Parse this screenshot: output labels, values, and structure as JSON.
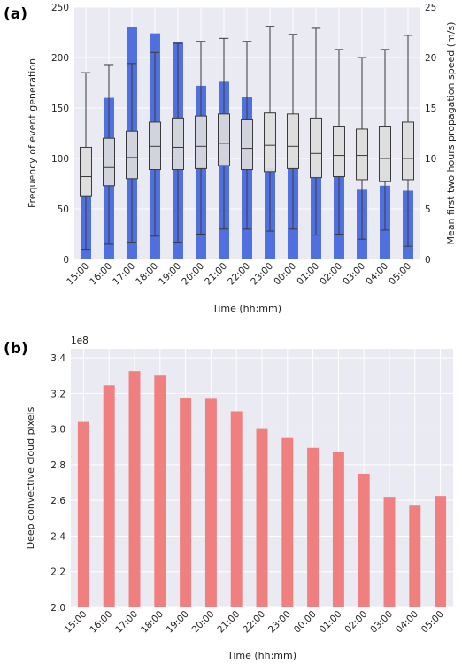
{
  "chart_data": [
    {
      "panel": "(a)",
      "type": "bar+box",
      "categories": [
        "15:00",
        "16:00",
        "17:00",
        "18:00",
        "19:00",
        "20:00",
        "21:00",
        "22:00",
        "23:00",
        "00:00",
        "01:00",
        "02:00",
        "03:00",
        "04:00",
        "05:00"
      ],
      "xlabel": "Time (hh:mm)",
      "ylabel": "Frequency of event generation",
      "ylim": [
        0,
        250
      ],
      "yticks": [
        0,
        50,
        100,
        150,
        200,
        250
      ],
      "bars": {
        "color": "#5070e0",
        "values": [
          63,
          160,
          230,
          224,
          215,
          172,
          176,
          161,
          90,
          90,
          82,
          83,
          69,
          73,
          68
        ]
      },
      "y2label": "Mean first two hours propagation speed (m/s)",
      "y2lim": [
        0,
        25
      ],
      "y2ticks": [
        0,
        5,
        10,
        15,
        20,
        25
      ],
      "boxes": [
        {
          "whislo": 1.0,
          "q1": 6.3,
          "med": 8.2,
          "q3": 11.1,
          "whishi": 18.5
        },
        {
          "whislo": 1.5,
          "q1": 7.3,
          "med": 9.1,
          "q3": 12.0,
          "whishi": 19.3
        },
        {
          "whislo": 1.7,
          "q1": 8.0,
          "med": 10.1,
          "q3": 12.7,
          "whishi": 19.4
        },
        {
          "whislo": 2.3,
          "q1": 8.9,
          "med": 11.2,
          "q3": 13.6,
          "whishi": 20.5
        },
        {
          "whislo": 1.7,
          "q1": 8.9,
          "med": 11.1,
          "q3": 14.0,
          "whishi": 21.4
        },
        {
          "whislo": 2.5,
          "q1": 9.0,
          "med": 11.2,
          "q3": 14.2,
          "whishi": 21.6
        },
        {
          "whislo": 3.0,
          "q1": 9.3,
          "med": 11.5,
          "q3": 14.4,
          "whishi": 21.9
        },
        {
          "whislo": 3.0,
          "q1": 8.9,
          "med": 11.0,
          "q3": 13.9,
          "whishi": 21.6
        },
        {
          "whislo": 2.8,
          "q1": 8.7,
          "med": 11.3,
          "q3": 14.5,
          "whishi": 23.1
        },
        {
          "whislo": 3.0,
          "q1": 9.0,
          "med": 11.2,
          "q3": 14.4,
          "whishi": 22.3
        },
        {
          "whislo": 2.4,
          "q1": 8.1,
          "med": 10.5,
          "q3": 14.0,
          "whishi": 22.9
        },
        {
          "whislo": 2.5,
          "q1": 8.2,
          "med": 10.3,
          "q3": 13.2,
          "whishi": 20.8
        },
        {
          "whislo": 2.0,
          "q1": 7.9,
          "med": 10.3,
          "q3": 12.9,
          "whishi": 20.0
        },
        {
          "whislo": 2.9,
          "q1": 7.7,
          "med": 10.0,
          "q3": 13.2,
          "whishi": 20.8
        },
        {
          "whislo": 1.3,
          "q1": 7.9,
          "med": 10.0,
          "q3": 13.6,
          "whishi": 22.2
        }
      ],
      "grid": true
    },
    {
      "panel": "(b)",
      "type": "bar",
      "categories": [
        "15:00",
        "16:00",
        "17:00",
        "18:00",
        "19:00",
        "20:00",
        "21:00",
        "22:00",
        "23:00",
        "00:00",
        "01:00",
        "02:00",
        "03:00",
        "04:00",
        "05:00"
      ],
      "values": [
        3.04,
        3.245,
        3.325,
        3.3,
        3.175,
        3.17,
        3.1,
        3.005,
        2.95,
        2.895,
        2.87,
        2.75,
        2.62,
        2.575,
        2.625
      ],
      "color": "#f08080",
      "scale_label": "1e8",
      "xlabel": "Time (hh:mm)",
      "ylabel": "Deep convective cloud pixels",
      "ylim": [
        2.0,
        3.45
      ],
      "yticks": [
        "2.0",
        "2.2",
        "2.4",
        "2.6",
        "2.8",
        "3.0",
        "3.2",
        "3.4"
      ],
      "grid": true
    }
  ]
}
